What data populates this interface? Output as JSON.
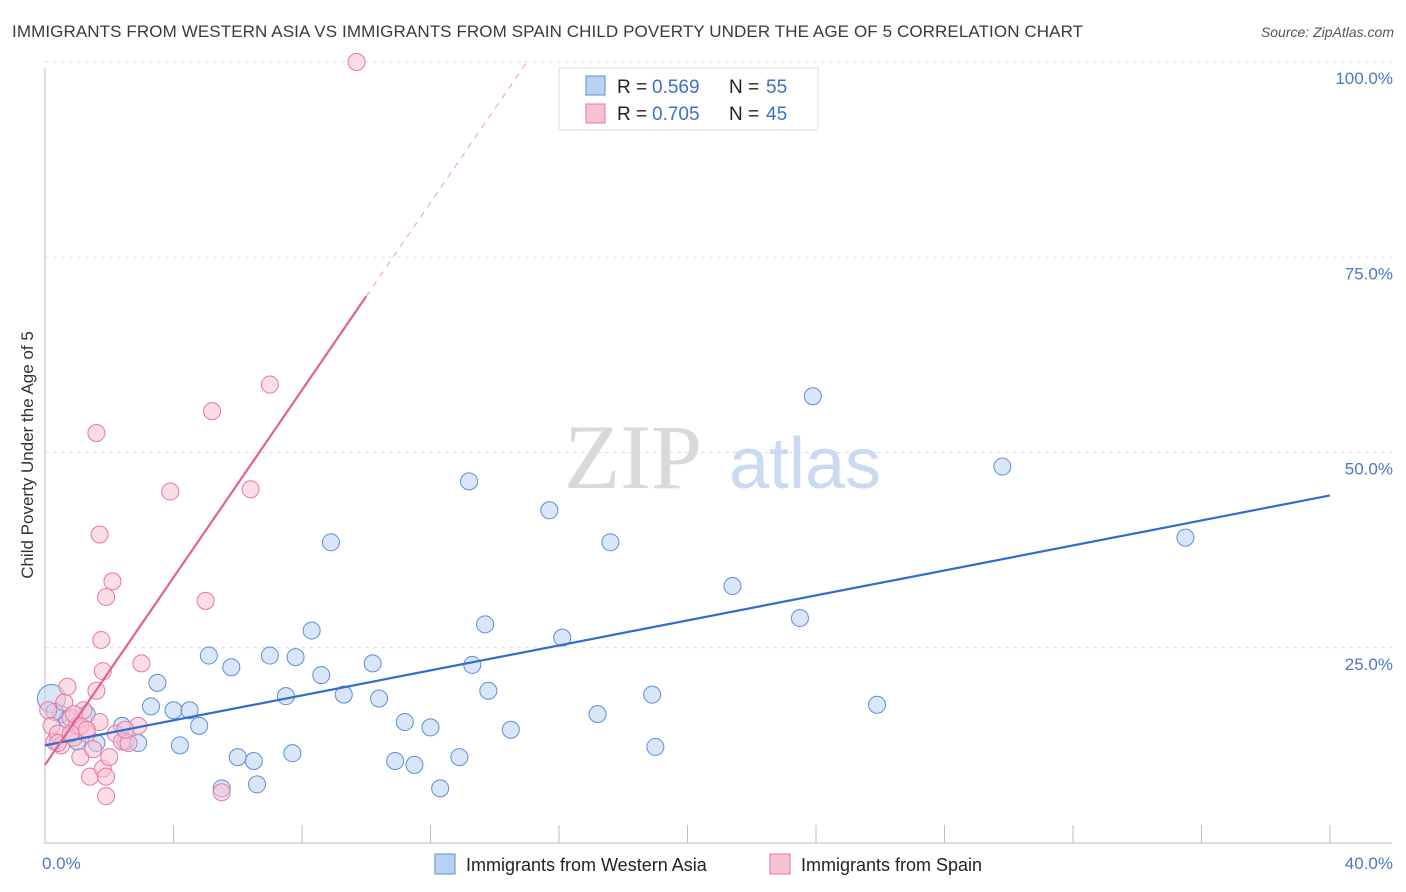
{
  "title": "IMMIGRANTS FROM WESTERN ASIA VS IMMIGRANTS FROM SPAIN CHILD POVERTY UNDER THE AGE OF 5 CORRELATION CHART",
  "source": "Source: ZipAtlas.com",
  "watermark": {
    "zip": "ZIP",
    "atlas": "atlas"
  },
  "colors": {
    "blue": "#5b8fd6",
    "blue_fill": "#b9d2f3",
    "blue_line": "#2f6fcb",
    "pink": "#e9779f",
    "pink_fill": "#f7c1d3",
    "pink_line": "#e0628f",
    "tick_text": "#4a78c2",
    "grid": "#dddddd"
  },
  "legend": {
    "r_label": "R =",
    "n_label": "N =",
    "rows": [
      {
        "r": "0.569",
        "n": "55"
      },
      {
        "r": "0.705",
        "n": "45"
      }
    ]
  },
  "chart_data": {
    "type": "scatter",
    "title": "IMMIGRANTS FROM WESTERN ASIA VS IMMIGRANTS FROM SPAIN CHILD POVERTY UNDER THE AGE OF 5 CORRELATION CHART",
    "xlabel": "",
    "ylabel": "Child Poverty Under the Age of 5",
    "xlim": [
      0,
      40
    ],
    "ylim": [
      0,
      100
    ],
    "x_ticks": [
      "0.0%",
      "40.0%"
    ],
    "y_ticks": [
      {
        "value": 100,
        "label": "100.0%"
      },
      {
        "value": 75,
        "label": "75.0%"
      },
      {
        "value": 50,
        "label": "50.0%"
      },
      {
        "value": 25,
        "label": "25.0%"
      }
    ],
    "grid": true,
    "legend_position": "top-center",
    "series": [
      {
        "name": "Immigrants from Western Asia",
        "color": "#5b8fd6",
        "r": 0.569,
        "n": 55,
        "trend": {
          "x0": 0,
          "y0": 12.5,
          "x1": 40,
          "y1": 44.5
        },
        "points": [
          [
            0.2,
            18.5
          ],
          [
            0.5,
            16.5
          ],
          [
            0.7,
            15.8
          ],
          [
            1.0,
            13.0
          ],
          [
            1.3,
            16.5
          ],
          [
            1.6,
            12.8
          ],
          [
            2.4,
            15.0
          ],
          [
            2.5,
            13.0
          ],
          [
            2.9,
            12.8
          ],
          [
            3.3,
            17.5
          ],
          [
            3.5,
            20.5
          ],
          [
            4.0,
            17.0
          ],
          [
            4.2,
            12.5
          ],
          [
            4.5,
            17.0
          ],
          [
            4.8,
            15.0
          ],
          [
            5.1,
            24.0
          ],
          [
            5.5,
            7.0
          ],
          [
            5.8,
            22.5
          ],
          [
            6.0,
            11.0
          ],
          [
            6.5,
            10.5
          ],
          [
            6.6,
            7.5
          ],
          [
            7.0,
            24.0
          ],
          [
            7.5,
            18.8
          ],
          [
            7.7,
            11.5
          ],
          [
            7.8,
            23.8
          ],
          [
            8.3,
            27.2
          ],
          [
            8.6,
            21.5
          ],
          [
            8.9,
            38.5
          ],
          [
            9.3,
            19.0
          ],
          [
            10.2,
            23.0
          ],
          [
            10.4,
            18.5
          ],
          [
            10.9,
            10.5
          ],
          [
            11.2,
            15.5
          ],
          [
            11.5,
            10.0
          ],
          [
            12.0,
            14.8
          ],
          [
            12.3,
            7.0
          ],
          [
            12.9,
            11.0
          ],
          [
            13.2,
            46.3
          ],
          [
            13.3,
            22.8
          ],
          [
            13.7,
            28.0
          ],
          [
            13.8,
            19.5
          ],
          [
            14.5,
            14.5
          ],
          [
            15.7,
            42.6
          ],
          [
            16.1,
            26.3
          ],
          [
            17.2,
            16.5
          ],
          [
            17.6,
            38.5
          ],
          [
            18.9,
            19.0
          ],
          [
            19.0,
            12.3
          ],
          [
            21.4,
            32.9
          ],
          [
            23.5,
            28.8
          ],
          [
            23.9,
            57.2
          ],
          [
            25.9,
            17.7
          ],
          [
            29.8,
            48.2
          ],
          [
            35.5,
            39.1
          ],
          [
            0.3,
            16.8
          ]
        ]
      },
      {
        "name": "Immigrants from Spain",
        "color": "#e9779f",
        "r": 0.705,
        "n": 45,
        "trend": {
          "x0": 0,
          "y0": 10,
          "x1": 10,
          "y1": 70
        },
        "trend_dash": {
          "x0": 10,
          "y0": 70,
          "x1": 15,
          "y1": 100
        },
        "points": [
          [
            0.1,
            17.0
          ],
          [
            0.2,
            15.0
          ],
          [
            0.3,
            13.0
          ],
          [
            0.4,
            14.0
          ],
          [
            0.5,
            12.5
          ],
          [
            0.6,
            18.0
          ],
          [
            0.7,
            20.0
          ],
          [
            0.8,
            16.0
          ],
          [
            0.9,
            13.5
          ],
          [
            1.0,
            15.0
          ],
          [
            1.1,
            11.0
          ],
          [
            1.2,
            17.0
          ],
          [
            1.3,
            14.0
          ],
          [
            1.4,
            8.5
          ],
          [
            1.5,
            12.0
          ],
          [
            1.6,
            19.5
          ],
          [
            1.7,
            15.5
          ],
          [
            1.8,
            9.5
          ],
          [
            1.9,
            8.5
          ],
          [
            2.0,
            11.0
          ],
          [
            1.6,
            52.5
          ],
          [
            1.7,
            39.5
          ],
          [
            1.75,
            26.0
          ],
          [
            1.8,
            22.0
          ],
          [
            1.9,
            31.5
          ],
          [
            1.9,
            6.0
          ],
          [
            2.1,
            33.5
          ],
          [
            2.2,
            14.0
          ],
          [
            2.4,
            13.0
          ],
          [
            2.6,
            12.8
          ],
          [
            2.9,
            15.0
          ],
          [
            3.0,
            23.0
          ],
          [
            3.9,
            45.0
          ],
          [
            5.0,
            31.0
          ],
          [
            5.2,
            55.3
          ],
          [
            5.5,
            6.5
          ],
          [
            6.4,
            45.3
          ],
          [
            7.0,
            58.7
          ],
          [
            9.7,
            100.0
          ],
          [
            0.4,
            12.8
          ],
          [
            0.9,
            16.5
          ],
          [
            1.1,
            15.0
          ],
          [
            1.3,
            14.5
          ],
          [
            2.5,
            14.5
          ],
          [
            0.8,
            14.0
          ]
        ]
      }
    ]
  }
}
